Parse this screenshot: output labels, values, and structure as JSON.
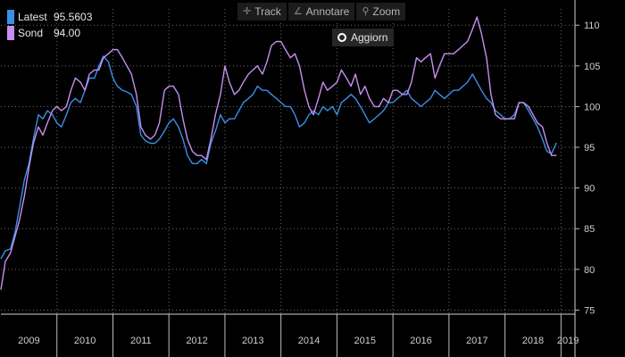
{
  "toolbar": {
    "track_label": "Track",
    "annotate_label": "Annotare",
    "zoom_label": "Zoom",
    "refresh_label": "Aggiorn"
  },
  "legend": [
    {
      "name": "Latest",
      "value": "95.5603",
      "color": "#3a8ee6"
    },
    {
      "name": "Sond",
      "value": "94.00",
      "color": "#c78ff0"
    }
  ],
  "chart_data": {
    "type": "line",
    "x_tick_labels": [
      "2009",
      "2010",
      "2011",
      "2012",
      "2013",
      "2014",
      "2015",
      "2016",
      "2017",
      "2018",
      "2019"
    ],
    "x_range": [
      2009.0,
      2019.25
    ],
    "y_ticks": [
      75,
      80,
      85,
      90,
      95,
      100,
      105,
      110
    ],
    "ylim": [
      74.5,
      112
    ],
    "grid": true,
    "y_axis_position": "right",
    "series": [
      {
        "name": "Latest",
        "color": "#3a8ee6",
        "points": [
          [
            2009.0,
            81.3
          ],
          [
            2009.08,
            82.3
          ],
          [
            2009.17,
            82.5
          ],
          [
            2009.25,
            84.5
          ],
          [
            2009.33,
            87.5
          ],
          [
            2009.42,
            91
          ],
          [
            2009.5,
            93
          ],
          [
            2009.58,
            96
          ],
          [
            2009.67,
            99
          ],
          [
            2009.75,
            98.5
          ],
          [
            2009.83,
            99.5
          ],
          [
            2009.92,
            99
          ],
          [
            2010.0,
            98
          ],
          [
            2010.08,
            97.5
          ],
          [
            2010.17,
            99
          ],
          [
            2010.25,
            100.5
          ],
          [
            2010.33,
            101
          ],
          [
            2010.42,
            100.5
          ],
          [
            2010.5,
            102
          ],
          [
            2010.58,
            103.5
          ],
          [
            2010.67,
            103.5
          ],
          [
            2010.75,
            105
          ],
          [
            2010.83,
            106.2
          ],
          [
            2010.92,
            105.5
          ],
          [
            2011.0,
            103.5
          ],
          [
            2011.08,
            102.5
          ],
          [
            2011.17,
            102
          ],
          [
            2011.25,
            101.8
          ],
          [
            2011.33,
            101.5
          ],
          [
            2011.42,
            100
          ],
          [
            2011.5,
            96.5
          ],
          [
            2011.58,
            95.8
          ],
          [
            2011.67,
            95.5
          ],
          [
            2011.75,
            95.5
          ],
          [
            2011.83,
            96
          ],
          [
            2011.92,
            97
          ],
          [
            2012.0,
            98
          ],
          [
            2012.08,
            98.5
          ],
          [
            2012.17,
            97.5
          ],
          [
            2012.25,
            96
          ],
          [
            2012.33,
            94
          ],
          [
            2012.42,
            93
          ],
          [
            2012.5,
            93
          ],
          [
            2012.58,
            93.5
          ],
          [
            2012.67,
            93
          ],
          [
            2012.75,
            95.5
          ],
          [
            2012.83,
            97
          ],
          [
            2012.92,
            99
          ],
          [
            2013.0,
            98
          ],
          [
            2013.08,
            98.5
          ],
          [
            2013.17,
            98.5
          ],
          [
            2013.25,
            99.5
          ],
          [
            2013.33,
            100.5
          ],
          [
            2013.42,
            101
          ],
          [
            2013.5,
            101.5
          ],
          [
            2013.58,
            102.5
          ],
          [
            2013.67,
            102
          ],
          [
            2013.75,
            102
          ],
          [
            2013.83,
            101.5
          ],
          [
            2013.92,
            101
          ],
          [
            2014.0,
            100.5
          ],
          [
            2014.08,
            100
          ],
          [
            2014.17,
            100
          ],
          [
            2014.25,
            99
          ],
          [
            2014.33,
            97.5
          ],
          [
            2014.42,
            98
          ],
          [
            2014.5,
            99
          ],
          [
            2014.58,
            99.5
          ],
          [
            2014.67,
            99
          ],
          [
            2014.75,
            100
          ],
          [
            2014.83,
            99.5
          ],
          [
            2014.92,
            100
          ],
          [
            2015.0,
            99
          ],
          [
            2015.08,
            100.5
          ],
          [
            2015.17,
            101
          ],
          [
            2015.25,
            101.5
          ],
          [
            2015.33,
            101
          ],
          [
            2015.42,
            100
          ],
          [
            2015.5,
            99
          ],
          [
            2015.58,
            98
          ],
          [
            2015.67,
            98.5
          ],
          [
            2015.75,
            99
          ],
          [
            2015.83,
            99.5
          ],
          [
            2015.92,
            100.5
          ],
          [
            2016.0,
            100.5
          ],
          [
            2016.08,
            101
          ],
          [
            2016.17,
            101.5
          ],
          [
            2016.25,
            102
          ],
          [
            2016.33,
            101
          ],
          [
            2016.42,
            100.5
          ],
          [
            2016.5,
            100
          ],
          [
            2016.58,
            100.5
          ],
          [
            2016.67,
            101
          ],
          [
            2016.75,
            102
          ],
          [
            2016.83,
            101.5
          ],
          [
            2016.92,
            101
          ],
          [
            2017.0,
            101.5
          ],
          [
            2017.08,
            102
          ],
          [
            2017.17,
            102
          ],
          [
            2017.25,
            102.5
          ],
          [
            2017.33,
            103
          ],
          [
            2017.42,
            104
          ],
          [
            2017.5,
            103
          ],
          [
            2017.58,
            102
          ],
          [
            2017.67,
            101
          ],
          [
            2017.75,
            100.5
          ],
          [
            2017.83,
            99.5
          ],
          [
            2017.92,
            99
          ],
          [
            2018.0,
            98.5
          ],
          [
            2018.08,
            98.5
          ],
          [
            2018.17,
            99
          ],
          [
            2018.25,
            100.5
          ],
          [
            2018.33,
            100.5
          ],
          [
            2018.42,
            99.5
          ],
          [
            2018.5,
            98.5
          ],
          [
            2018.58,
            97.5
          ],
          [
            2018.67,
            96
          ],
          [
            2018.75,
            94.5
          ],
          [
            2018.83,
            94.2
          ],
          [
            2018.92,
            95.56
          ]
        ]
      },
      {
        "name": "Sond",
        "color": "#c78ff0",
        "points": [
          [
            2009.0,
            77.5
          ],
          [
            2009.08,
            81
          ],
          [
            2009.17,
            82
          ],
          [
            2009.25,
            84
          ],
          [
            2009.33,
            86
          ],
          [
            2009.42,
            89
          ],
          [
            2009.5,
            92.5
          ],
          [
            2009.58,
            95.5
          ],
          [
            2009.67,
            97.5
          ],
          [
            2009.75,
            96.5
          ],
          [
            2009.83,
            98
          ],
          [
            2009.92,
            99.5
          ],
          [
            2010.0,
            100
          ],
          [
            2010.08,
            99.5
          ],
          [
            2010.17,
            100
          ],
          [
            2010.25,
            102
          ],
          [
            2010.33,
            103.5
          ],
          [
            2010.42,
            103
          ],
          [
            2010.5,
            102
          ],
          [
            2010.58,
            104
          ],
          [
            2010.67,
            104.5
          ],
          [
            2010.75,
            104.5
          ],
          [
            2010.83,
            106
          ],
          [
            2010.92,
            106.5
          ],
          [
            2011.0,
            107
          ],
          [
            2011.08,
            107
          ],
          [
            2011.17,
            106
          ],
          [
            2011.25,
            105
          ],
          [
            2011.33,
            104
          ],
          [
            2011.42,
            101.5
          ],
          [
            2011.5,
            97.5
          ],
          [
            2011.58,
            96.5
          ],
          [
            2011.67,
            96
          ],
          [
            2011.75,
            96.5
          ],
          [
            2011.83,
            98
          ],
          [
            2011.92,
            102
          ],
          [
            2012.0,
            102.5
          ],
          [
            2012.08,
            102.5
          ],
          [
            2012.17,
            101.5
          ],
          [
            2012.25,
            98.5
          ],
          [
            2012.33,
            96
          ],
          [
            2012.42,
            94.5
          ],
          [
            2012.5,
            94
          ],
          [
            2012.58,
            94
          ],
          [
            2012.67,
            93.5
          ],
          [
            2012.75,
            96
          ],
          [
            2012.83,
            99
          ],
          [
            2012.92,
            101.5
          ],
          [
            2013.0,
            105
          ],
          [
            2013.08,
            103
          ],
          [
            2013.17,
            101.5
          ],
          [
            2013.25,
            102
          ],
          [
            2013.33,
            103
          ],
          [
            2013.42,
            104
          ],
          [
            2013.5,
            104.5
          ],
          [
            2013.58,
            105
          ],
          [
            2013.67,
            104
          ],
          [
            2013.75,
            105.5
          ],
          [
            2013.83,
            107.5
          ],
          [
            2013.92,
            108
          ],
          [
            2014.0,
            108
          ],
          [
            2014.08,
            107
          ],
          [
            2014.17,
            106
          ],
          [
            2014.25,
            106.5
          ],
          [
            2014.33,
            105
          ],
          [
            2014.42,
            102
          ],
          [
            2014.5,
            100
          ],
          [
            2014.58,
            99
          ],
          [
            2014.67,
            101
          ],
          [
            2014.75,
            103
          ],
          [
            2014.83,
            102
          ],
          [
            2014.92,
            102.5
          ],
          [
            2015.0,
            103
          ],
          [
            2015.08,
            104.5
          ],
          [
            2015.17,
            103.5
          ],
          [
            2015.25,
            102.5
          ],
          [
            2015.33,
            104
          ],
          [
            2015.42,
            101.5
          ],
          [
            2015.5,
            102.5
          ],
          [
            2015.58,
            101
          ],
          [
            2015.67,
            100
          ],
          [
            2015.75,
            100
          ],
          [
            2015.83,
            101
          ],
          [
            2015.92,
            100.5
          ],
          [
            2016.0,
            102
          ],
          [
            2016.08,
            102
          ],
          [
            2016.17,
            101.5
          ],
          [
            2016.25,
            101.5
          ],
          [
            2016.33,
            103
          ],
          [
            2016.42,
            106
          ],
          [
            2016.5,
            105.5
          ],
          [
            2016.58,
            106
          ],
          [
            2016.67,
            106.5
          ],
          [
            2016.75,
            103.5
          ],
          [
            2016.83,
            105
          ],
          [
            2016.92,
            106.5
          ],
          [
            2017.0,
            106.5
          ],
          [
            2017.08,
            106.5
          ],
          [
            2017.17,
            107
          ],
          [
            2017.25,
            107.5
          ],
          [
            2017.33,
            108
          ],
          [
            2017.42,
            109.5
          ],
          [
            2017.5,
            111
          ],
          [
            2017.58,
            109
          ],
          [
            2017.67,
            106
          ],
          [
            2017.75,
            101.5
          ],
          [
            2017.83,
            99
          ],
          [
            2017.92,
            98.5
          ],
          [
            2018.0,
            98.5
          ],
          [
            2018.08,
            98.5
          ],
          [
            2018.17,
            98.5
          ],
          [
            2018.25,
            100.5
          ],
          [
            2018.33,
            100.5
          ],
          [
            2018.42,
            100
          ],
          [
            2018.5,
            99
          ],
          [
            2018.58,
            98
          ],
          [
            2018.67,
            97.5
          ],
          [
            2018.75,
            95.5
          ],
          [
            2018.83,
            94
          ],
          [
            2018.92,
            94.0
          ]
        ]
      }
    ]
  }
}
